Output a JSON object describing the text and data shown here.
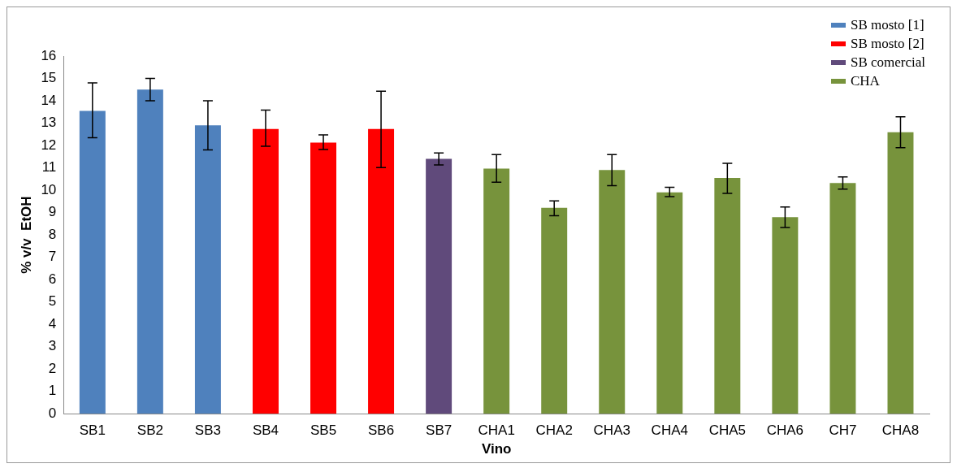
{
  "chart_data": {
    "type": "bar",
    "xlabel": "Vino",
    "ylabel": "% v/v  EtOH",
    "categories": [
      "SB1",
      "SB2",
      "SB3",
      "SB4",
      "SB5",
      "SB6",
      "SB7",
      "CHA1",
      "CHA2",
      "CHA3",
      "CHA4",
      "CHA5",
      "CHA6",
      "CH7",
      "CHA8"
    ],
    "series": [
      {
        "name": "SB mosto [1]",
        "color": "#4f81bd",
        "values": [
          13.55,
          14.5,
          12.9,
          null,
          null,
          null,
          null,
          null,
          null,
          null,
          null,
          null,
          null,
          null,
          null
        ],
        "errors": [
          [
            12.35,
            14.8
          ],
          [
            14.0,
            15.0
          ],
          [
            11.8,
            14.0
          ],
          null,
          null,
          null,
          null,
          null,
          null,
          null,
          null,
          null,
          null,
          null,
          null
        ]
      },
      {
        "name": "SB mosto [2]",
        "color": "#ff0000",
        "values": [
          null,
          null,
          null,
          12.74,
          12.13,
          12.74,
          null,
          null,
          null,
          null,
          null,
          null,
          null,
          null,
          null
        ],
        "errors": [
          null,
          null,
          null,
          [
            11.97,
            13.58
          ],
          [
            11.82,
            12.47
          ],
          [
            11.01,
            14.43
          ],
          null,
          null,
          null,
          null,
          null,
          null,
          null,
          null,
          null
        ]
      },
      {
        "name": "SB comercial",
        "color": "#604a7b",
        "values": [
          null,
          null,
          null,
          null,
          null,
          null,
          11.4,
          null,
          null,
          null,
          null,
          null,
          null,
          null,
          null
        ],
        "errors": [
          null,
          null,
          null,
          null,
          null,
          null,
          [
            11.13,
            11.67
          ],
          null,
          null,
          null,
          null,
          null,
          null,
          null,
          null
        ]
      },
      {
        "name": "CHA",
        "color": "#77933c",
        "values": [
          null,
          null,
          null,
          null,
          null,
          null,
          null,
          10.97,
          9.21,
          10.9,
          9.9,
          10.55,
          8.79,
          10.32,
          12.59
        ],
        "errors": [
          null,
          null,
          null,
          null,
          null,
          null,
          null,
          [
            10.36,
            11.59
          ],
          [
            8.86,
            9.52
          ],
          [
            10.2,
            11.59
          ],
          [
            9.71,
            10.13
          ],
          [
            9.86,
            11.2
          ],
          [
            8.33,
            9.25
          ],
          [
            10.05,
            10.59
          ],
          [
            11.9,
            13.28
          ]
        ]
      }
    ],
    "ylim": [
      0,
      16
    ],
    "yticks": [
      0,
      1,
      2,
      3,
      4,
      5,
      6,
      7,
      8,
      9,
      10,
      11,
      12,
      13,
      14,
      15,
      16
    ],
    "grid": false,
    "legend": "top right"
  }
}
